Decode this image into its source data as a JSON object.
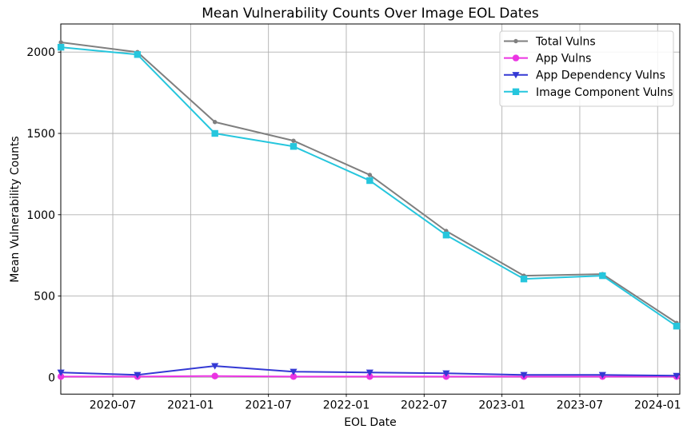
{
  "chart_data": {
    "type": "line",
    "title": "Mean Vulnerability Counts Over Image EOL Dates",
    "xlabel": "EOL Date",
    "ylabel": "Mean Vulnerability Counts",
    "grid": true,
    "legend_position": "upper right",
    "background": "#FFFFFF",
    "grid_color": "#B0B0B0",
    "axis_color": "#000000",
    "legend_border_color": "#CCCCCC",
    "x_dates": [
      "2020-03",
      "2020-09",
      "2021-03",
      "2021-09",
      "2022-03",
      "2022-09",
      "2023-03",
      "2023-09",
      "2024-02"
    ],
    "x_months": [
      2.0,
      7.9,
      13.87,
      19.93,
      25.81,
      31.7,
      37.69,
      43.75,
      49.46
    ],
    "x_tick_labels": [
      "2020-07",
      "2021-01",
      "2021-07",
      "2022-01",
      "2022-07",
      "2023-01",
      "2023-07",
      "2024-01"
    ],
    "x_tick_months": [
      6,
      12,
      18,
      24,
      30,
      36,
      42,
      48
    ],
    "xlim_months": [
      1.99,
      49.71
    ],
    "y_ticks": [
      0,
      500,
      1000,
      1500,
      2000
    ],
    "ylim": [
      -103,
      2173
    ],
    "series": [
      {
        "name": "Total Vulns",
        "color": "#7F7F7F",
        "marker": "circle-small",
        "values": [
          2060,
          2000,
          1570,
          1455,
          1245,
          900,
          625,
          635,
          335
        ]
      },
      {
        "name": "App Vulns",
        "color": "#EB34E2",
        "marker": "circle",
        "values": [
          5,
          5,
          8,
          5,
          5,
          5,
          5,
          5,
          5
        ]
      },
      {
        "name": "App Dependency Vulns",
        "color": "#3439D4",
        "marker": "triangle-down",
        "values": [
          30,
          15,
          70,
          35,
          30,
          25,
          15,
          15,
          10
        ]
      },
      {
        "name": "Image Component Vulns",
        "color": "#26C6DD",
        "marker": "square",
        "values": [
          2030,
          1985,
          1500,
          1420,
          1210,
          875,
          605,
          625,
          315
        ]
      }
    ]
  }
}
